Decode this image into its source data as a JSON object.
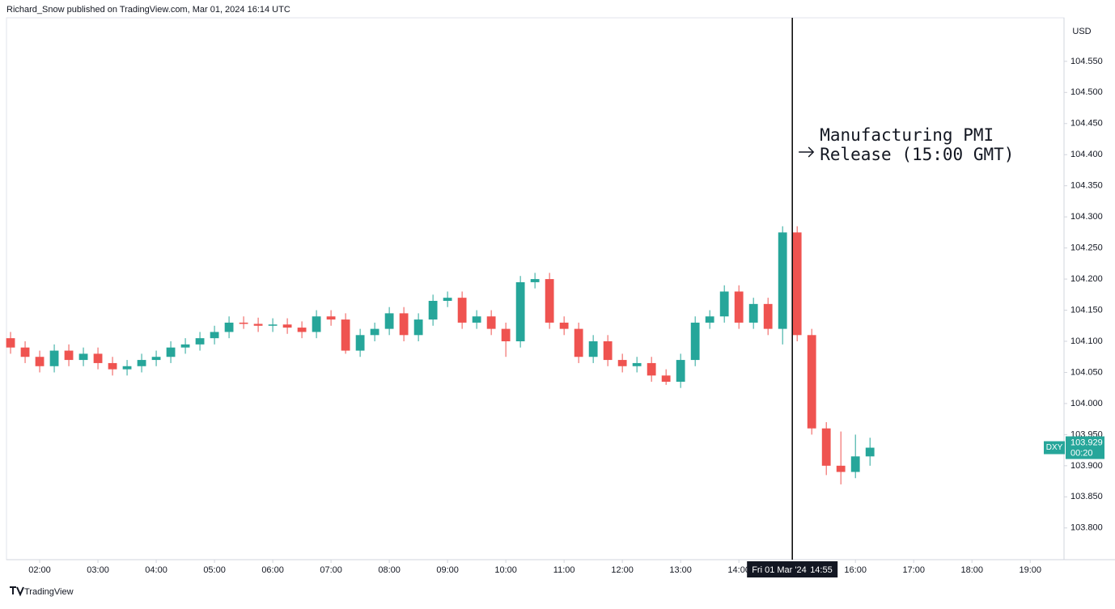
{
  "header": "Richard_Snow published on TradingView.com, Mar 01, 2024 16:14 UTC",
  "footer": "TradingView",
  "chart_data": {
    "type": "candlestick",
    "currency": "USD",
    "up_color": "#26a69a",
    "down_color": "#ef5350",
    "x": [
      1.5,
      1.75,
      2,
      2.25,
      2.5,
      2.75,
      3,
      3.25,
      3.5,
      3.75,
      4,
      4.25,
      4.5,
      4.75,
      5,
      5.25,
      5.5,
      5.75,
      6,
      6.25,
      6.5,
      6.75,
      7,
      7.25,
      7.5,
      7.75,
      8,
      8.25,
      8.5,
      8.75,
      9,
      9.25,
      9.5,
      9.75,
      10,
      10.25,
      10.5,
      10.75,
      11,
      11.25,
      11.5,
      11.75,
      12,
      12.25,
      12.5,
      12.75,
      13,
      13.25,
      13.5,
      13.75,
      14,
      14.25,
      14.5,
      14.75,
      15,
      15.25,
      15.5,
      15.75,
      16,
      16.25
    ],
    "open": [
      104.105,
      104.09,
      104.075,
      104.06,
      104.085,
      104.07,
      104.08,
      104.065,
      104.055,
      104.06,
      104.07,
      104.075,
      104.09,
      104.095,
      104.105,
      104.115,
      104.13,
      104.128,
      104.125,
      104.127,
      104.122,
      104.115,
      104.14,
      104.135,
      104.085,
      104.11,
      104.12,
      104.145,
      104.11,
      104.135,
      104.165,
      104.17,
      104.13,
      104.14,
      104.12,
      104.1,
      104.195,
      104.2,
      104.13,
      104.12,
      104.075,
      104.1,
      104.07,
      104.06,
      104.065,
      104.045,
      104.035,
      104.07,
      104.13,
      104.14,
      104.18,
      104.13,
      104.16,
      104.12,
      104.275,
      104.11,
      103.96,
      103.9,
      103.89,
      103.915
    ],
    "high": [
      104.115,
      104.1,
      104.085,
      104.095,
      104.095,
      104.09,
      104.09,
      104.075,
      104.07,
      104.08,
      104.085,
      104.1,
      104.105,
      104.115,
      104.125,
      104.14,
      104.14,
      104.138,
      104.137,
      104.137,
      104.132,
      104.15,
      104.15,
      104.145,
      104.12,
      104.13,
      104.155,
      104.155,
      104.145,
      104.175,
      104.18,
      104.18,
      104.15,
      104.15,
      104.13,
      104.205,
      104.21,
      104.21,
      104.14,
      104.13,
      104.11,
      104.11,
      104.08,
      104.075,
      104.075,
      104.055,
      104.08,
      104.14,
      104.15,
      104.19,
      104.19,
      104.17,
      104.17,
      104.285,
      104.285,
      104.12,
      103.97,
      103.955,
      103.95,
      103.945
    ],
    "low": [
      104.08,
      104.065,
      104.05,
      104.05,
      104.06,
      104.06,
      104.055,
      104.045,
      104.045,
      104.05,
      104.06,
      104.065,
      104.08,
      104.085,
      104.095,
      104.105,
      104.12,
      104.115,
      104.115,
      104.112,
      104.105,
      104.105,
      104.125,
      104.08,
      104.075,
      104.1,
      104.11,
      104.1,
      104.1,
      104.125,
      104.155,
      104.12,
      104.12,
      104.11,
      104.075,
      104.09,
      104.185,
      104.12,
      104.11,
      104.065,
      104.065,
      104.06,
      104.05,
      104.05,
      104.035,
      104.03,
      104.025,
      104.06,
      104.12,
      104.13,
      104.12,
      104.12,
      104.11,
      104.095,
      104.1,
      103.95,
      103.885,
      103.87,
      103.88,
      103.9
    ],
    "close": [
      104.09,
      104.075,
      104.06,
      104.085,
      104.07,
      104.08,
      104.065,
      104.055,
      104.06,
      104.07,
      104.075,
      104.09,
      104.095,
      104.105,
      104.115,
      104.13,
      104.128,
      104.125,
      104.127,
      104.122,
      104.115,
      104.14,
      104.135,
      104.085,
      104.11,
      104.12,
      104.145,
      104.11,
      104.135,
      104.165,
      104.17,
      104.13,
      104.14,
      104.12,
      104.1,
      104.195,
      104.2,
      104.13,
      104.12,
      104.075,
      104.1,
      104.07,
      104.06,
      104.065,
      104.045,
      104.035,
      104.07,
      104.13,
      104.14,
      104.18,
      104.13,
      104.16,
      104.12,
      104.275,
      104.11,
      103.96,
      103.9,
      103.89,
      103.915,
      103.929
    ],
    "xlim": [
      1.43,
      19.58
    ],
    "ylim": [
      103.749,
      104.62
    ],
    "xticks": [
      {
        "value": 2,
        "label": "02:00"
      },
      {
        "value": 3,
        "label": "03:00"
      },
      {
        "value": 4,
        "label": "04:00"
      },
      {
        "value": 5,
        "label": "05:00"
      },
      {
        "value": 6,
        "label": "06:00"
      },
      {
        "value": 7,
        "label": "07:00"
      },
      {
        "value": 8,
        "label": "08:00"
      },
      {
        "value": 9,
        "label": "09:00"
      },
      {
        "value": 10,
        "label": "10:00"
      },
      {
        "value": 11,
        "label": "11:00"
      },
      {
        "value": 12,
        "label": "12:00"
      },
      {
        "value": 13,
        "label": "13:00"
      },
      {
        "value": 14,
        "label": "14:00"
      },
      {
        "value": 16,
        "label": "16:00"
      },
      {
        "value": 17,
        "label": "17:00"
      },
      {
        "value": 18,
        "label": "18:00"
      },
      {
        "value": 19,
        "label": "19:00"
      }
    ],
    "yticks": [
      {
        "value": 103.8,
        "label": "103.800"
      },
      {
        "value": 103.85,
        "label": "103.850"
      },
      {
        "value": 103.9,
        "label": "103.900"
      },
      {
        "value": 103.95,
        "label": "103.950"
      },
      {
        "value": 104,
        "label": "104.000"
      },
      {
        "value": 104.05,
        "label": "104.050"
      },
      {
        "value": 104.1,
        "label": "104.100"
      },
      {
        "value": 104.15,
        "label": "104.150"
      },
      {
        "value": 104.2,
        "label": "104.200"
      },
      {
        "value": 104.25,
        "label": "104.250"
      },
      {
        "value": 104.3,
        "label": "104.300"
      },
      {
        "value": 104.35,
        "label": "104.350"
      },
      {
        "value": 104.4,
        "label": "104.400"
      },
      {
        "value": 104.45,
        "label": "104.450"
      },
      {
        "value": 104.5,
        "label": "104.500"
      },
      {
        "value": 104.55,
        "label": "104.550"
      }
    ],
    "event_line": {
      "x": 14.9167,
      "date": "Fri 01 Mar '24",
      "time": "14:55"
    },
    "annotation": [
      "Manufacturing PMI",
      "Release (15:00 GMT)"
    ],
    "symbol": "DXY",
    "last_price": 103.929,
    "countdown": "00:20"
  }
}
